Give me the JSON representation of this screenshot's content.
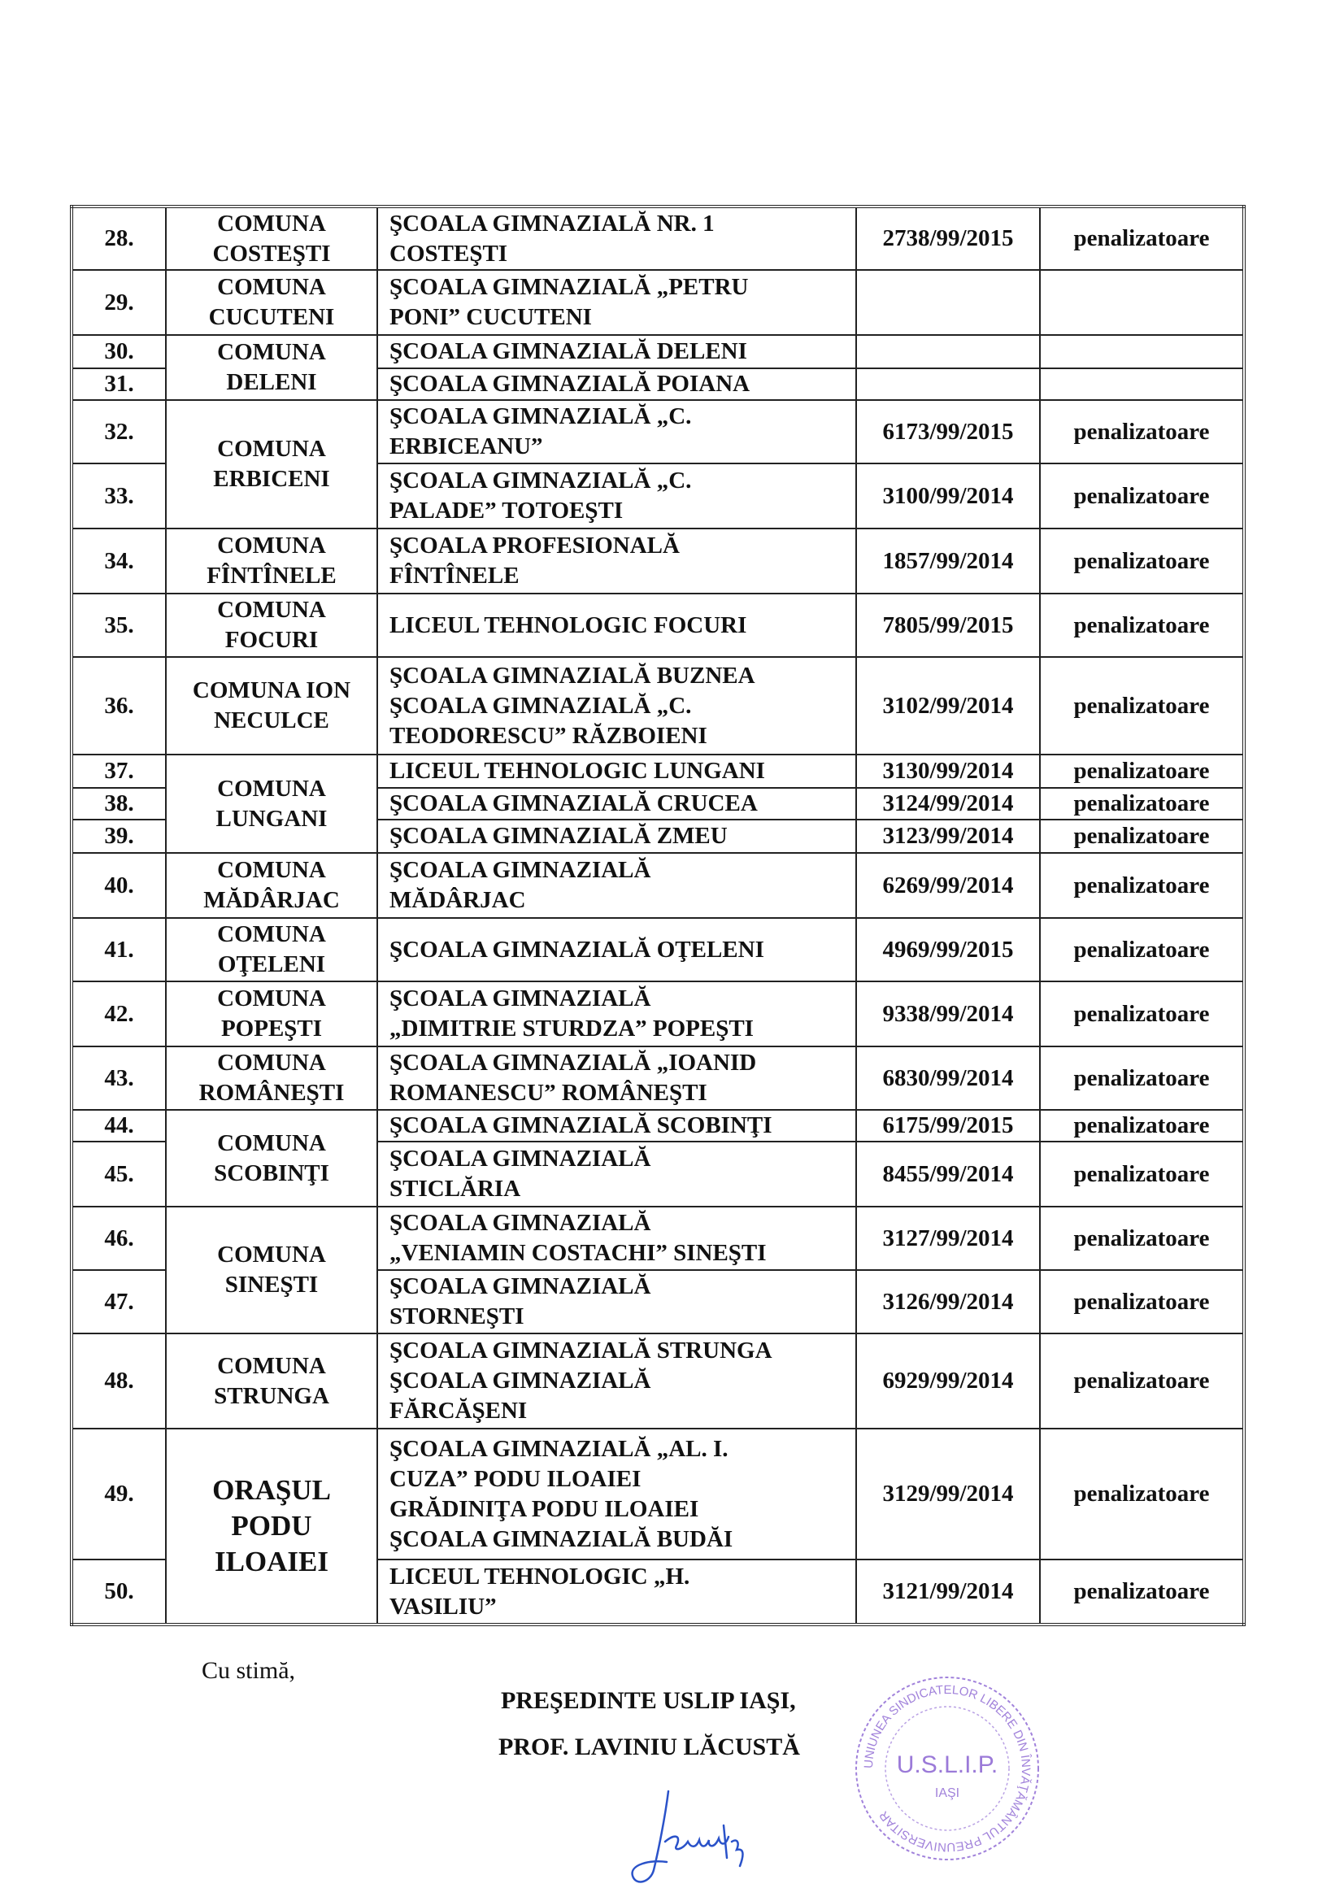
{
  "rows": [
    {
      "num": "28.",
      "locality": [
        "COMUNA",
        "COSTEŞTI"
      ],
      "school": [
        "ŞCOALA GIMNAZIALĂ NR. 1",
        "COSTEŞTI"
      ],
      "reg": "2738/99/2015",
      "type": "penalizatoare"
    },
    {
      "num": "29.",
      "locality": [
        "COMUNA",
        "CUCUTENI"
      ],
      "school": [
        "ŞCOALA GIMNAZIALĂ „PETRU",
        "PONI” CUCUTENI"
      ],
      "reg": "",
      "type": ""
    },
    {
      "num": "30.",
      "locality": [
        "COMUNA",
        "DELENI"
      ],
      "school": [
        "ŞCOALA GIMNAZIALĂ DELENI"
      ],
      "reg": "",
      "type": ""
    },
    {
      "num": "31.",
      "school": [
        "ŞCOALA GIMNAZIALĂ POIANA"
      ],
      "reg": "",
      "type": ""
    },
    {
      "num": "32.",
      "locality": [
        "COMUNA",
        "ERBICENI"
      ],
      "school": [
        "ŞCOALA GIMNAZIALĂ „C.",
        "ERBICEANU”"
      ],
      "reg": "6173/99/2015",
      "type": "penalizatoare"
    },
    {
      "num": "33.",
      "school": [
        "ŞCOALA GIMNAZIALĂ „C.",
        "PALADE” TOTOEŞTI"
      ],
      "reg": "3100/99/2014",
      "type": "penalizatoare"
    },
    {
      "num": "34.",
      "locality": [
        "COMUNA",
        "FÎNTÎNELE"
      ],
      "school": [
        "ŞCOALA PROFESIONALĂ",
        "FÎNTÎNELE"
      ],
      "reg": "1857/99/2014",
      "type": "penalizatoare"
    },
    {
      "num": "35.",
      "locality": [
        "COMUNA",
        "FOCURI"
      ],
      "school": [
        "LICEUL TEHNOLOGIC FOCURI"
      ],
      "reg": "7805/99/2015",
      "type": "penalizatoare"
    },
    {
      "num": "36.",
      "locality": [
        "COMUNA ION",
        "NECULCE"
      ],
      "school": [
        "ŞCOALA GIMNAZIALĂ BUZNEA",
        "ŞCOALA GIMNAZIALĂ „C.",
        "TEODORESCU” RĂZBOIENI"
      ],
      "reg": "3102/99/2014",
      "type": "penalizatoare"
    },
    {
      "num": "37.",
      "locality": [
        "COMUNA",
        "LUNGANI"
      ],
      "school": [
        "LICEUL TEHNOLOGIC LUNGANI"
      ],
      "reg": "3130/99/2014",
      "type": "penalizatoare"
    },
    {
      "num": "38.",
      "school": [
        "ŞCOALA GIMNAZIALĂ CRUCEA"
      ],
      "reg": "3124/99/2014",
      "type": "penalizatoare"
    },
    {
      "num": "39.",
      "school": [
        "ŞCOALA GIMNAZIALĂ ZMEU"
      ],
      "reg": "3123/99/2014",
      "type": "penalizatoare"
    },
    {
      "num": "40.",
      "locality": [
        "COMUNA",
        "MĂDÂRJAC"
      ],
      "school": [
        "ŞCOALA GIMNAZIALĂ",
        "MĂDÂRJAC"
      ],
      "reg": "6269/99/2014",
      "type": "penalizatoare"
    },
    {
      "num": "41.",
      "locality": [
        "COMUNA",
        "OŢELENI"
      ],
      "school": [
        "ŞCOALA GIMNAZIALĂ OŢELENI"
      ],
      "reg": "4969/99/2015",
      "type": "penalizatoare"
    },
    {
      "num": "42.",
      "locality": [
        "COMUNA",
        "POPEŞTI"
      ],
      "school": [
        "ŞCOALA GIMNAZIALĂ",
        "„DIMITRIE STURDZA” POPEŞTI"
      ],
      "reg": "9338/99/2014",
      "type": "penalizatoare"
    },
    {
      "num": "43.",
      "locality": [
        "COMUNA",
        "ROMÂNEŞTI"
      ],
      "school": [
        "ŞCOALA GIMNAZIALĂ „IOANID",
        "ROMANESCU” ROMÂNEŞTI"
      ],
      "reg": "6830/99/2014",
      "type": "penalizatoare"
    },
    {
      "num": "44.",
      "locality": [
        "COMUNA",
        "SCOBINŢI"
      ],
      "school": [
        "ŞCOALA GIMNAZIALĂ SCOBINŢI"
      ],
      "reg": "6175/99/2015",
      "type": "penalizatoare"
    },
    {
      "num": "45.",
      "school": [
        "ŞCOALA GIMNAZIALĂ",
        "STICLĂRIA"
      ],
      "reg": "8455/99/2014",
      "type": "penalizatoare"
    },
    {
      "num": "46.",
      "locality": [
        "COMUNA",
        "SINEŞTI"
      ],
      "school": [
        "ŞCOALA GIMNAZIALĂ",
        "„VENIAMIN COSTACHI” SINEŞTI"
      ],
      "reg": "3127/99/2014",
      "type": "penalizatoare"
    },
    {
      "num": "47.",
      "school": [
        "ŞCOALA GIMNAZIALĂ",
        "STORNEŞTI"
      ],
      "reg": "3126/99/2014",
      "type": "penalizatoare"
    },
    {
      "num": "48.",
      "locality": [
        "COMUNA",
        "STRUNGA"
      ],
      "school": [
        "ŞCOALA GIMNAZIALĂ STRUNGA",
        "ŞCOALA GIMNAZIALĂ",
        "FĂRCĂŞENI"
      ],
      "reg": "6929/99/2014",
      "type": "penalizatoare"
    },
    {
      "num": "49.",
      "locality": [
        "ORAŞUL",
        "PODU",
        "ILOAIEI"
      ],
      "school": [
        "ŞCOALA GIMNAZIALĂ „AL. I.",
        "CUZA” PODU ILOAIEI",
        "GRĂDINIŢA PODU ILOAIEI",
        "ŞCOALA GIMNAZIALĂ BUDĂI"
      ],
      "reg": "3129/99/2014",
      "type": "penalizatoare"
    },
    {
      "num": "50.",
      "school": [
        "LICEUL TEHNOLOGIC „H.",
        "VASILIU”"
      ],
      "reg": "3121/99/2014",
      "type": "penalizatoare"
    }
  ],
  "closing": {
    "greeting": "Cu stimă,",
    "title": "PREŞEDINTE USLIP IAŞI,",
    "name": "PROF. LAVINIU LĂCUSTĂ",
    "signature": "Lăcustă",
    "stamp": {
      "center": "U.S.L.I.P.",
      "city": "IAŞI",
      "ring": "UNIUNEA SINDICATELOR LIBERE DIN ÎNVĂŢĂMÂNTUL PREUNIVERSITAR",
      "color": "#8a63d2"
    },
    "signature_color": "#2a52c9"
  }
}
